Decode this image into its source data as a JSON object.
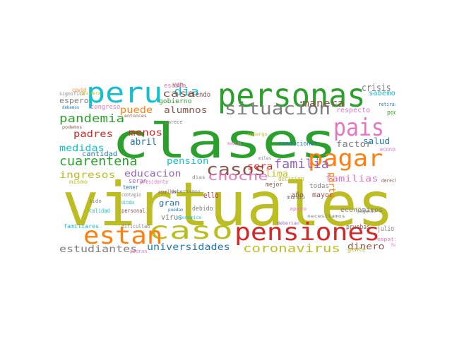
{
  "words": [
    {
      "text": "virtuales",
      "color": "#bcbd22"
    },
    {
      "text": "clases",
      "color": "#2ca02c"
    },
    {
      "text": "personas",
      "color": "#2ca02c"
    },
    {
      "text": "peru",
      "color": "#17becf"
    },
    {
      "text": "pensiones",
      "color": "#d62728"
    },
    {
      "text": "pagar",
      "color": "#ff7f0e"
    },
    {
      "text": "pais",
      "color": "#e377c2"
    },
    {
      "text": "caso",
      "color": "#bcbd22"
    },
    {
      "text": "estan",
      "color": "#ff7f0e"
    },
    {
      "text": "situacion",
      "color": "#7f7f7f"
    },
    {
      "text": "casos",
      "color": "#8c564b"
    },
    {
      "text": "cuarentena",
      "color": "#2ca02c"
    },
    {
      "text": "pandemia",
      "color": "#2ca02c"
    },
    {
      "text": "familia",
      "color": "#9467bd"
    },
    {
      "text": "choche",
      "color": "#e377c2"
    },
    {
      "text": "coronavirus",
      "color": "#bcbd22"
    },
    {
      "text": "universidades",
      "color": "#1f77b4"
    },
    {
      "text": "estudiantes",
      "color": "#7f7f7f"
    },
    {
      "text": "dinero",
      "color": "#8c564b"
    },
    {
      "text": "educacion",
      "color": "#9467bd"
    },
    {
      "text": "manera",
      "color": "#8c564b"
    },
    {
      "text": "crisis",
      "color": "#7f7f7f"
    },
    {
      "text": "dia",
      "color": "#17becf"
    },
    {
      "text": "casa",
      "color": "#8c564b"
    },
    {
      "text": "puede",
      "color": "#ff7f0e"
    },
    {
      "text": "alumnos",
      "color": "#8c564b"
    },
    {
      "text": "padres",
      "color": "#d62728"
    },
    {
      "text": "menos",
      "color": "#d62728"
    },
    {
      "text": "medidas",
      "color": "#17becf"
    },
    {
      "text": "abril",
      "color": "#1f77b4"
    },
    {
      "text": "ingresos",
      "color": "#bcbd22"
    },
    {
      "text": "pension",
      "color": "#17becf"
    },
    {
      "text": "sera",
      "color": "#d62728"
    },
    {
      "text": "lima",
      "color": "#bcbd22"
    },
    {
      "text": "familias",
      "color": "#e377c2"
    },
    {
      "text": "parte",
      "color": "#ff7f0e"
    },
    {
      "text": "salud",
      "color": "#1f77b4"
    },
    {
      "text": "factor",
      "color": "#7f7f7f"
    },
    {
      "text": "sabemos",
      "color": "#17becf"
    },
    {
      "text": "respecto",
      "color": "#e377c2"
    },
    {
      "text": "espero",
      "color": "#7f7f7f"
    },
    {
      "text": "gran",
      "color": "#1f77b4"
    },
    {
      "text": "virus",
      "color": "#7f7f7f"
    },
    {
      "text": "ello",
      "color": "#d62728"
    },
    {
      "text": "año",
      "color": "#8c564b"
    },
    {
      "text": "julio",
      "color": "#7f7f7f"
    },
    {
      "text": "mayor",
      "color": "#8c564b"
    },
    {
      "text": "todas",
      "color": "#7f7f7f"
    },
    {
      "text": "economicos",
      "color": "#7f7f7f"
    },
    {
      "text": "cantidad",
      "color": "#1f77b4"
    },
    {
      "text": "condiciones",
      "color": "#1f77b4"
    },
    {
      "text": "van",
      "color": "#8c564b"
    },
    {
      "text": "siendo",
      "color": "#8c564b"
    },
    {
      "text": "gobierno",
      "color": "#2ca02c"
    },
    {
      "text": "escala",
      "color": "#e377c2"
    },
    {
      "text": "congreso",
      "color": "#e377c2"
    },
    {
      "text": "covid",
      "color": "#ff7f0e"
    },
    {
      "text": "significa",
      "color": "#7f7f7f"
    },
    {
      "text": "debido",
      "color": "#7f7f7f"
    },
    {
      "text": "pruebas",
      "color": "#8c564b"
    },
    {
      "text": "mejor",
      "color": "#8c564b"
    },
    {
      "text": "mundo",
      "color": "#7f7f7f"
    },
    {
      "text": "gente",
      "color": "#bcbd22"
    },
    {
      "text": "poder",
      "color": "#2ca02c"
    },
    {
      "text": "retirarme",
      "color": "#1f77b4"
    },
    {
      "text": "economica",
      "color": "#e377c2"
    },
    {
      "text": "familiares",
      "color": "#17becf"
    },
    {
      "text": "dificultad",
      "color": "#7f7f7f"
    },
    {
      "text": "personal",
      "color": "#8c564b"
    },
    {
      "text": "calidad",
      "color": "#17becf"
    },
    {
      "text": "sido",
      "color": "#7f7f7f"
    },
    {
      "text": "mismo",
      "color": "#bcbd22"
    },
    {
      "text": "tener",
      "color": "#1f77b4"
    },
    {
      "text": "seran",
      "color": "#9467bd"
    },
    {
      "text": "presidente",
      "color": "#e377c2"
    },
    {
      "text": "decision",
      "color": "#bcbd22"
    },
    {
      "text": "apoyo",
      "color": "#e377c2"
    },
    {
      "text": "pagando",
      "color": "#7f7f7f"
    },
    {
      "text": "necesitamos",
      "color": "#7f7f7f"
    },
    {
      "text": "deberian",
      "color": "#9467bd"
    },
    {
      "text": "haber",
      "color": "#e377c2"
    },
    {
      "text": "derechos",
      "color": "#8c564b"
    },
    {
      "text": "empatia",
      "color": "#e377c2"
    },
    {
      "text": "podemos",
      "color": "#8c564b"
    },
    {
      "text": "debemos",
      "color": "#1f77b4"
    },
    {
      "text": "considera",
      "color": "#bcbd22"
    },
    {
      "text": "entonces",
      "color": "#8c564b"
    },
    {
      "text": "parece",
      "color": "#7f7f7f"
    },
    {
      "text": "deberiamos",
      "color": "#7f7f7f"
    },
    {
      "text": "embargo",
      "color": "#bcbd22"
    },
    {
      "text": "medida",
      "color": "#e377c2"
    },
    {
      "text": "miles",
      "color": "#7f7f7f"
    },
    {
      "text": "dias",
      "color": "#7f7f7f"
    },
    {
      "text": "aquellos",
      "color": "#8c564b"
    },
    {
      "text": "contagio",
      "color": "#7f7f7f"
    },
    {
      "text": "bicoba",
      "color": "#17becf"
    },
    {
      "text": "puedan",
      "color": "#1f77b4"
    },
    {
      "text": "podran",
      "color": "#e377c2"
    },
    {
      "text": "pasar",
      "color": "#bcbd22"
    },
    {
      "text": "economico",
      "color": "#17becf"
    }
  ]
}
